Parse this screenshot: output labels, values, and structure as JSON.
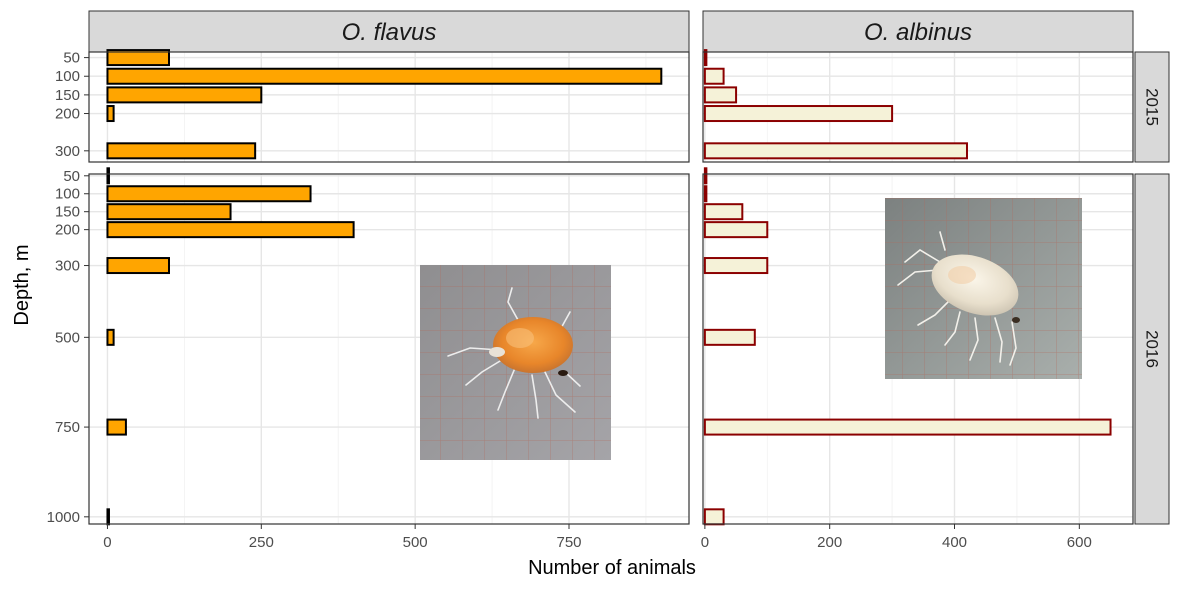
{
  "chart_data": {
    "type": "bar",
    "orientation": "horizontal",
    "xlabel": "Number of animals",
    "ylabel": "Depth, m",
    "facet_columns": [
      "O. flavus",
      "O. albinus"
    ],
    "facet_rows": [
      "2015",
      "2016"
    ],
    "y_ticks": {
      "2015": [
        50,
        100,
        150,
        200,
        300
      ],
      "2016": [
        50,
        100,
        150,
        200,
        300,
        500,
        750,
        1000
      ]
    },
    "y_tick_labels": {
      "2015": [
        "50",
        "100",
        "150",
        "200",
        "300"
      ],
      "2016": [
        "50",
        "100",
        "150",
        "200",
        "300",
        "500",
        "750",
        "1000"
      ]
    },
    "x_ticks": {
      "O. flavus": [
        0,
        250,
        500,
        750
      ],
      "O. albinus": [
        0,
        200,
        400,
        600
      ]
    },
    "x_tick_labels": {
      "O. flavus": [
        "0",
        "250",
        "500",
        "750"
      ],
      "O. albinus": [
        "0",
        "200",
        "400",
        "600"
      ]
    },
    "xlim": {
      "O. flavus": [
        -30,
        945
      ],
      "O. albinus": [
        -3,
        686
      ]
    },
    "ylim": {
      "2015": [
        35,
        330
      ],
      "2016": [
        45,
        1020
      ]
    },
    "grid": true,
    "colors": {
      "O. flavus": {
        "fill": "#FFA500",
        "stroke": "#000000"
      },
      "O. albinus": {
        "fill": "#F5F2D8",
        "stroke": "#8B0000"
      },
      "panel_border": "#333333",
      "strip_fill": "#D9D9D9",
      "grid_major": "#EBEBEB"
    },
    "panels": [
      {
        "species": "O. flavus",
        "year": "2015",
        "depths": [
          50,
          100,
          150,
          200,
          300
        ],
        "values": [
          100,
          900,
          250,
          10,
          240
        ]
      },
      {
        "species": "O. albinus",
        "year": "2015",
        "depths": [
          50,
          100,
          150,
          200,
          300
        ],
        "values": [
          2,
          30,
          50,
          300,
          420
        ]
      },
      {
        "species": "O. flavus",
        "year": "2016",
        "depths": [
          50,
          100,
          150,
          200,
          300,
          500,
          750,
          1000
        ],
        "values": [
          0,
          330,
          200,
          400,
          100,
          10,
          30,
          2
        ]
      },
      {
        "species": "O. albinus",
        "year": "2016",
        "depths": [
          50,
          100,
          150,
          200,
          300,
          500,
          750,
          1000
        ],
        "values": [
          2,
          2,
          60,
          100,
          100,
          80,
          650,
          30
        ]
      }
    ],
    "inset_images": [
      {
        "panel": "O. flavus / 2016",
        "subject": "orange-amphipod-photo"
      },
      {
        "panel": "O. albinus / 2016",
        "subject": "white-amphipod-photo"
      }
    ]
  }
}
